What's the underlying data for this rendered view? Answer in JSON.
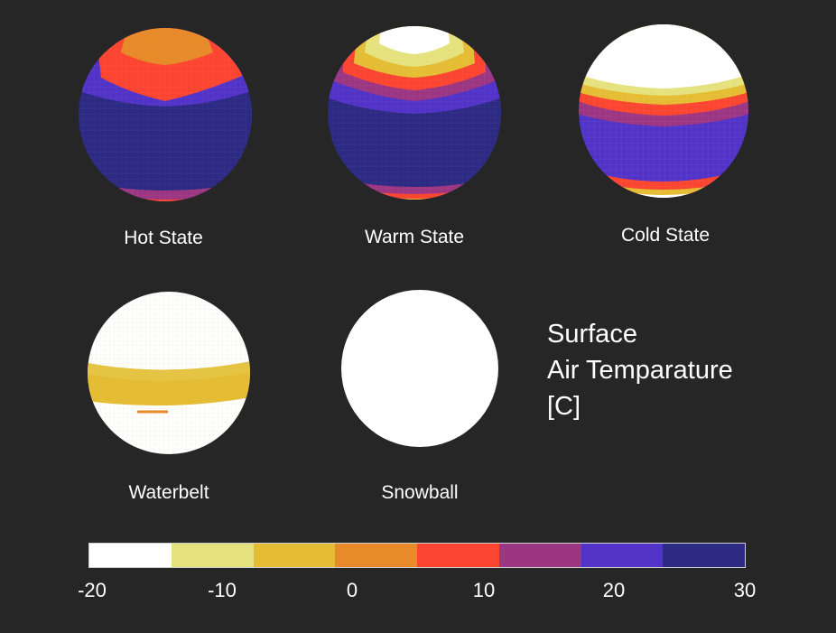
{
  "globes": [
    {
      "label": "Hot State"
    },
    {
      "label": "Warm State"
    },
    {
      "label": "Cold State"
    },
    {
      "label": "Waterbelt"
    },
    {
      "label": "Snowball"
    }
  ],
  "legend": {
    "title_lines": [
      "Surface",
      "Air Temparature",
      "[C]"
    ]
  },
  "colorbar": {
    "colors": [
      "#ffffff",
      "#e5e27e",
      "#e5bd34",
      "#e8892a",
      "#fb4530",
      "#9c3682",
      "#5233c8",
      "#2c2a82"
    ],
    "ticks": [
      "-20",
      "-10",
      "0",
      "10",
      "20",
      "30"
    ]
  }
}
